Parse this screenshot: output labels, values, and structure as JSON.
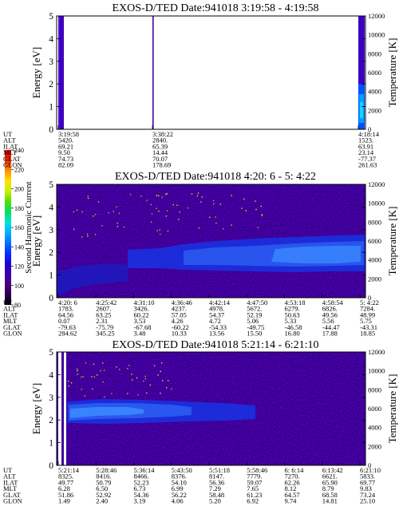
{
  "colorbar": {
    "label": "Second Harmonic Current",
    "ticks": [
      "80",
      "100",
      "120",
      "140",
      "160",
      "180",
      "200",
      "220",
      "240"
    ],
    "colors": [
      "#000000",
      "#2a0050",
      "#4b007a",
      "#3a00aa",
      "#2200dd",
      "#0030ff",
      "#0070ff",
      "#00b4ff",
      "#00e5d8",
      "#00e060",
      "#50e000",
      "#c8f000",
      "#ffe000",
      "#ff9000",
      "#ff3000",
      "#e00000"
    ]
  },
  "chart_data": [
    {
      "type": "heatmap",
      "title": "EXOS-D/TED   Date:941018  3:19:58 - 4:19:58",
      "ylabel": "Energy [eV]",
      "ylabel_right": "Temperature [K]",
      "ylim": [
        0,
        5
      ],
      "yticks": [
        "0",
        "1",
        "2",
        "3",
        "4",
        "5"
      ],
      "ylim_right": [
        0,
        12000
      ],
      "yticks_right": [
        "0",
        "2000",
        "4000",
        "6000",
        "8000",
        "10000",
        "12000"
      ],
      "table": {
        "labels": [
          "UT",
          "ALT",
          "ILAT",
          "MLT",
          "GLAT",
          "GLON"
        ],
        "columns": [
          [
            "3:19:58",
            "5420.",
            "69.21",
            "9.50",
            "74.73",
            "82.09"
          ],
          [
            "3:38:22",
            "2840.",
            "65.39",
            "14.44",
            "70.07",
            "178.69"
          ],
          [
            "4:18:14",
            "1523.",
            "63.91",
            "23.14",
            "-77.37",
            "261.63"
          ]
        ]
      }
    },
    {
      "type": "heatmap",
      "title": "EXOS-D/TED   Date:941018  4:20: 6 - 5: 4:22",
      "ylabel": "Energy [eV]",
      "ylabel_right": "Temperature [K]",
      "ylim": [
        0,
        5
      ],
      "yticks": [
        "0",
        "1",
        "2",
        "3",
        "4",
        "5"
      ],
      "ylim_right": [
        0,
        12000
      ],
      "yticks_right": [
        "0",
        "2000",
        "4000",
        "6000",
        "8000",
        "10000",
        "12000"
      ],
      "table": {
        "labels": [
          "UT",
          "ALT",
          "ILAT",
          "MLT",
          "GLAT",
          "GLON"
        ],
        "columns": [
          [
            "4:20: 6",
            "1783.",
            "64.56",
            "0.07",
            "-79.63",
            "284.62"
          ],
          [
            "4:25:42",
            "2607.",
            "63.25",
            "2.31",
            "-75.79",
            "345.25"
          ],
          [
            "4:31:10",
            "3426.",
            "60.22",
            "3.53",
            "-67.68",
            "3.48"
          ],
          [
            "4:36:46",
            "4237.",
            "57.05",
            "4.26",
            "-60.22",
            "10.33"
          ],
          [
            "4:42:14",
            "4978.",
            "54.37",
            "4.72",
            "-54.33",
            "13.56"
          ],
          [
            "4:47:50",
            "5672.",
            "52.19",
            "5.06",
            "-49.75",
            "15.50"
          ],
          [
            "4:53:18",
            "6279.",
            "50.63",
            "5.33",
            "-46.58",
            "16.80"
          ],
          [
            "4:58:54",
            "6826.",
            "49.56",
            "5.56",
            "-44.47",
            "17.88"
          ],
          [
            "5: 4:22",
            "7284.",
            "48.99",
            "5.75",
            "-43.31",
            "18.85"
          ]
        ]
      }
    },
    {
      "type": "heatmap",
      "title": "EXOS-D/TED   Date:941018  5:21:14 - 6:21:10",
      "ylabel": "Energy [eV]",
      "ylabel_right": "Temperature [K]",
      "ylim": [
        0,
        5
      ],
      "yticks": [
        "0",
        "1",
        "2",
        "3",
        "4",
        "5"
      ],
      "ylim_right": [
        0,
        12000
      ],
      "yticks_right": [
        "0",
        "2000",
        "4000",
        "6000",
        "8000",
        "10000",
        "12000"
      ],
      "table": {
        "labels": [
          "UT",
          "ALT",
          "ILAT",
          "MLT",
          "GLAT",
          "GLON"
        ],
        "columns": [
          [
            "5:21:14",
            "8325.",
            "49.77",
            "6.28",
            "51.86",
            "1.49"
          ],
          [
            "5:28:46",
            "8416.",
            "50.79",
            "6.50",
            "52.92",
            "2.40"
          ],
          [
            "5:36:14",
            "8466.",
            "52.23",
            "6.73",
            "54.36",
            "3.19"
          ],
          [
            "5:43:50",
            "8376.",
            "54.10",
            "6.99",
            "56.22",
            "4.06"
          ],
          [
            "5:51:18",
            "8147.",
            "56.36",
            "7.29",
            "58.48",
            "5.20"
          ],
          [
            "5:58:46",
            "7779.",
            "59.07",
            "7.65",
            "61.23",
            "6.92"
          ],
          [
            "6: 6:14",
            "7270.",
            "62.26",
            "8.12",
            "64.57",
            "9.74"
          ],
          [
            "6:13:42",
            "6621.",
            "65.90",
            "8.79",
            "68.58",
            "14.81"
          ],
          [
            "6:21:10",
            "5833.",
            "69.77",
            "9.83",
            "73.24",
            "25.10"
          ]
        ]
      }
    }
  ]
}
